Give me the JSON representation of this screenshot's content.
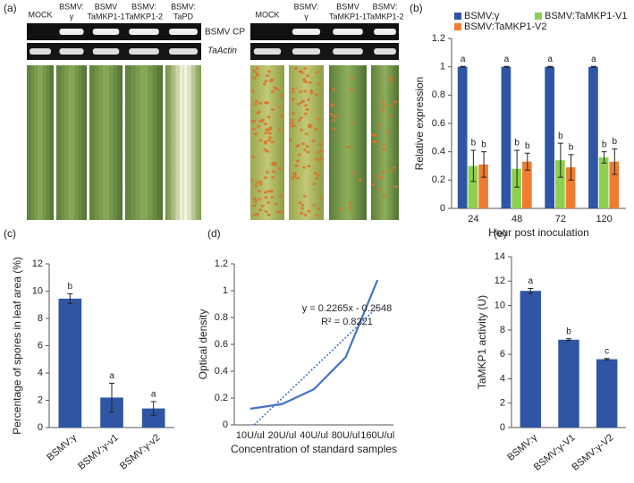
{
  "figure_a": {
    "panel_label": "(a)",
    "left_lanes": [
      [
        "MOCK"
      ],
      [
        "BSMV:",
        "γ"
      ],
      [
        "BSMV",
        "TaMKP1-1"
      ],
      [
        "BSMV:",
        "TaMKP1-2"
      ],
      [
        "BSMV:",
        "TaPD"
      ]
    ],
    "gel_labels": [
      "BSMV CP",
      "TaActin"
    ],
    "right_lanes": [
      [
        "MOCK"
      ],
      [
        "BSMV:",
        "γ"
      ],
      [
        "BSMV",
        "TaMKP1-1"
      ],
      [
        "BSMV:",
        "TaMKP1-2"
      ]
    ]
  },
  "chart_data": [
    {
      "type": "bar",
      "panel_label": "(b)",
      "y_label": "Relative expression",
      "x_label": "Hour post inoculation",
      "categories": [
        "24",
        "48",
        "72",
        "120"
      ],
      "series": [
        {
          "name": "BSMV:γ",
          "color": "#2f55a4",
          "values": [
            1,
            1,
            1,
            1
          ],
          "errors": [
            0.003,
            0.003,
            0.003,
            0.003
          ],
          "letters": [
            "a",
            "a",
            "a",
            "a"
          ]
        },
        {
          "name": "BSMV:TaMKP1-V1",
          "color": "#8dd04f",
          "values": [
            0.3,
            0.28,
            0.34,
            0.36
          ],
          "errors": [
            0.11,
            0.13,
            0.12,
            0.04
          ],
          "letters": [
            "b",
            "b",
            "b",
            "b"
          ]
        },
        {
          "name": "BSMV:TaMKP1-V2",
          "color": "#ee7d31",
          "values": [
            0.31,
            0.33,
            0.29,
            0.33
          ],
          "errors": [
            0.09,
            0.06,
            0.09,
            0.09
          ],
          "letters": [
            "b",
            "b",
            "b",
            "b"
          ]
        }
      ],
      "ylim": [
        0,
        1.2
      ],
      "yticks": [
        0,
        0.2,
        0.4,
        0.6,
        0.8,
        1,
        1.2
      ],
      "legend": "top"
    },
    {
      "type": "bar",
      "panel_label": "(c)",
      "y_label": "Percentage of  spores in leaf area (%)",
      "categories": [
        "BSMV:γ",
        "BSMV:γ-v1",
        "BSMV:γ-v2"
      ],
      "values": [
        9.45,
        2.2,
        1.4
      ],
      "errors": [
        0.35,
        1.05,
        0.5
      ],
      "letters": [
        "b",
        "a",
        "a"
      ],
      "color": "#2f55a4",
      "ylim": [
        0,
        12
      ],
      "yticks": [
        0,
        2,
        4,
        6,
        8,
        10,
        12
      ]
    },
    {
      "type": "line",
      "panel_label": "(d)",
      "y_label": "Optical density",
      "x_label": "Concentration of standard samples",
      "categories": [
        "10U/ul",
        "20U/ul",
        "40U/ul",
        "80U/ul",
        "160U/ul"
      ],
      "values": [
        0.12,
        0.155,
        0.265,
        0.505,
        1.08
      ],
      "color": "#4472c4",
      "trendline": {
        "slope": 0.2265,
        "intercept": -0.2548,
        "equation": "y = 0.2265x - 0.2548",
        "r_squared": "R² = 0.8221"
      },
      "ylim": [
        0,
        1.2
      ],
      "yticks": [
        0,
        0.2,
        0.4,
        0.6,
        0.8,
        1,
        1.2
      ]
    },
    {
      "type": "bar",
      "panel_label": "(e)",
      "y_label": "TaMKP1 activity (U)",
      "categories": [
        "BSMV:γ",
        "BSMV:γ-V1",
        "BSMV:γ-V2"
      ],
      "values": [
        11.2,
        7.2,
        5.6
      ],
      "errors": [
        0.2,
        0.08,
        0.06
      ],
      "letters": [
        "a",
        "b",
        "c"
      ],
      "color": "#2f55a4",
      "ylim": [
        0,
        14
      ],
      "yticks": [
        0,
        2,
        4,
        6,
        8,
        10,
        12,
        14
      ]
    }
  ]
}
